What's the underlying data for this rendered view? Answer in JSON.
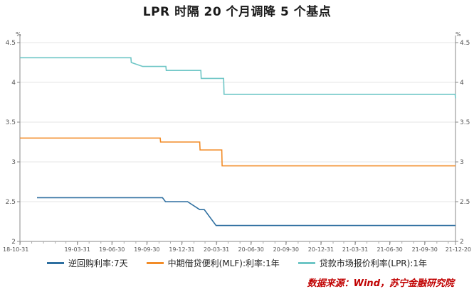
{
  "title": "LPR 时隔 20 个月调降 5 个基点",
  "source": "数据来源：Wind，苏宁金融研究院",
  "colors": {
    "reverse_repo": "#2e6fa0",
    "mlf": "#f28c28",
    "lpr": "#6ec6c6"
  },
  "chart_data": {
    "type": "line",
    "title": "LPR 时隔 20 个月调降 5 个基点",
    "left_unit": "%",
    "right_unit": "%",
    "xlim": [
      "2018-10-31",
      "2021-12-20"
    ],
    "ylim": [
      2,
      4.5
    ],
    "yticks": [
      "2",
      "2.5",
      "3",
      "3.5",
      "4",
      "4.5"
    ],
    "xtick_labels": [
      "18-10-31",
      "19-03-31",
      "19-06-30",
      "19-09-30",
      "19-12-31",
      "20-03-31",
      "20-06-30",
      "20-09-30",
      "20-12-31",
      "21-03-31",
      "21-06-30",
      "21-09-30",
      "21-12-20"
    ],
    "xtick_dates": [
      "2018-10-31",
      "2019-03-31",
      "2019-06-30",
      "2019-09-30",
      "2019-12-31",
      "2020-03-31",
      "2020-06-30",
      "2020-09-30",
      "2020-12-31",
      "2021-03-31",
      "2021-06-30",
      "2021-09-30",
      "2021-12-20"
    ],
    "grid": true,
    "legend_position": "bottom",
    "series": [
      {
        "name": "逆回购利率:7天",
        "color": "#2e6fa0",
        "points": [
          [
            "2018-12-15",
            2.55
          ],
          [
            "2019-11-10",
            2.55
          ],
          [
            "2019-11-18",
            2.5
          ],
          [
            "2020-01-15",
            2.5
          ],
          [
            "2020-02-16",
            2.4
          ],
          [
            "2020-02-28",
            2.4
          ],
          [
            "2020-03-30",
            2.2
          ],
          [
            "2021-12-20",
            2.2
          ]
        ]
      },
      {
        "name": "中期借贷便利(MLF):利率:1年",
        "color": "#f28c28",
        "points": [
          [
            "2018-10-31",
            3.3
          ],
          [
            "2019-11-04",
            3.3
          ],
          [
            "2019-11-05",
            3.25
          ],
          [
            "2020-02-16",
            3.25
          ],
          [
            "2020-02-17",
            3.15
          ],
          [
            "2020-04-14",
            3.15
          ],
          [
            "2020-04-15",
            2.95
          ],
          [
            "2021-12-20",
            2.95
          ]
        ]
      },
      {
        "name": "贷款市场报价利率(LPR):1年",
        "color": "#6ec6c6",
        "points": [
          [
            "2018-10-31",
            4.31
          ],
          [
            "2019-08-19",
            4.31
          ],
          [
            "2019-08-20",
            4.25
          ],
          [
            "2019-09-19",
            4.2
          ],
          [
            "2019-11-19",
            4.2
          ],
          [
            "2019-11-20",
            4.15
          ],
          [
            "2020-02-19",
            4.15
          ],
          [
            "2020-02-20",
            4.05
          ],
          [
            "2020-04-19",
            4.05
          ],
          [
            "2020-04-20",
            3.85
          ],
          [
            "2021-12-19",
            3.85
          ],
          [
            "2021-12-20",
            3.8
          ]
        ]
      }
    ]
  }
}
